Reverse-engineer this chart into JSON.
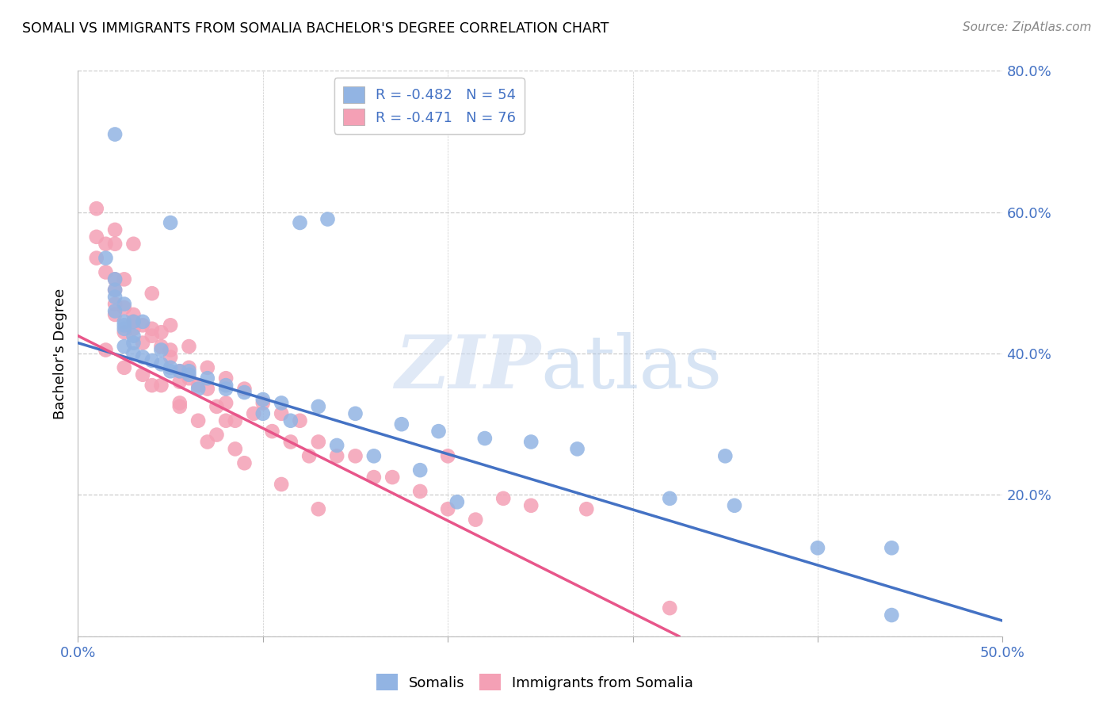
{
  "title": "SOMALI VS IMMIGRANTS FROM SOMALIA BACHELOR'S DEGREE CORRELATION CHART",
  "source": "Source: ZipAtlas.com",
  "ylabel": "Bachelor's Degree",
  "xlim": [
    0.0,
    0.5
  ],
  "ylim": [
    0.0,
    0.8
  ],
  "somalis_color": "#92b4e3",
  "immigrants_color": "#f4a0b5",
  "somalis_legend_label": "R = -0.482   N = 54",
  "immigrants_legend_label": "R = -0.471   N = 76",
  "legend_label1": "Somalis",
  "legend_label2": "Immigrants from Somalia",
  "axis_color": "#4472c4",
  "grid_color": "#cccccc",
  "blue_line_x": [
    0.0,
    0.5
  ],
  "blue_line_y": [
    0.415,
    0.022
  ],
  "pink_line_x": [
    0.0,
    0.325
  ],
  "pink_line_y": [
    0.425,
    0.0
  ],
  "somalis_x": [
    0.02,
    0.05,
    0.12,
    0.135,
    0.015,
    0.02,
    0.02,
    0.02,
    0.025,
    0.025,
    0.03,
    0.03,
    0.025,
    0.03,
    0.035,
    0.04,
    0.045,
    0.05,
    0.055,
    0.06,
    0.07,
    0.08,
    0.09,
    0.1,
    0.11,
    0.13,
    0.15,
    0.175,
    0.195,
    0.22,
    0.245,
    0.27,
    0.32,
    0.355,
    0.4,
    0.44,
    0.025,
    0.035,
    0.045,
    0.06,
    0.08,
    0.1,
    0.115,
    0.14,
    0.16,
    0.185,
    0.205,
    0.03,
    0.05,
    0.065,
    0.35,
    0.44,
    0.02,
    0.025
  ],
  "somalis_y": [
    0.71,
    0.585,
    0.585,
    0.59,
    0.535,
    0.505,
    0.49,
    0.46,
    0.445,
    0.435,
    0.425,
    0.415,
    0.41,
    0.4,
    0.395,
    0.39,
    0.385,
    0.38,
    0.375,
    0.37,
    0.365,
    0.355,
    0.345,
    0.335,
    0.33,
    0.325,
    0.315,
    0.3,
    0.29,
    0.28,
    0.275,
    0.265,
    0.195,
    0.185,
    0.125,
    0.03,
    0.47,
    0.445,
    0.405,
    0.375,
    0.35,
    0.315,
    0.305,
    0.27,
    0.255,
    0.235,
    0.19,
    0.445,
    0.375,
    0.35,
    0.255,
    0.125,
    0.48,
    0.44
  ],
  "immigrants_x": [
    0.01,
    0.01,
    0.015,
    0.015,
    0.02,
    0.02,
    0.02,
    0.02,
    0.02,
    0.025,
    0.025,
    0.03,
    0.03,
    0.03,
    0.035,
    0.035,
    0.04,
    0.04,
    0.045,
    0.045,
    0.05,
    0.05,
    0.055,
    0.055,
    0.06,
    0.06,
    0.065,
    0.07,
    0.07,
    0.075,
    0.08,
    0.08,
    0.085,
    0.09,
    0.095,
    0.1,
    0.105,
    0.11,
    0.115,
    0.12,
    0.125,
    0.13,
    0.14,
    0.15,
    0.16,
    0.17,
    0.185,
    0.2,
    0.215,
    0.23,
    0.245,
    0.275,
    0.015,
    0.025,
    0.035,
    0.045,
    0.055,
    0.065,
    0.075,
    0.085,
    0.01,
    0.02,
    0.03,
    0.04,
    0.05,
    0.06,
    0.08,
    0.2,
    0.32,
    0.025,
    0.04,
    0.055,
    0.07,
    0.09,
    0.11,
    0.13
  ],
  "immigrants_y": [
    0.565,
    0.535,
    0.555,
    0.515,
    0.555,
    0.505,
    0.49,
    0.47,
    0.455,
    0.505,
    0.465,
    0.455,
    0.445,
    0.435,
    0.44,
    0.415,
    0.485,
    0.435,
    0.43,
    0.41,
    0.44,
    0.395,
    0.375,
    0.36,
    0.41,
    0.38,
    0.355,
    0.38,
    0.35,
    0.325,
    0.365,
    0.33,
    0.305,
    0.35,
    0.315,
    0.33,
    0.29,
    0.315,
    0.275,
    0.305,
    0.255,
    0.275,
    0.255,
    0.255,
    0.225,
    0.225,
    0.205,
    0.18,
    0.165,
    0.195,
    0.185,
    0.18,
    0.405,
    0.38,
    0.37,
    0.355,
    0.325,
    0.305,
    0.285,
    0.265,
    0.605,
    0.575,
    0.555,
    0.425,
    0.405,
    0.365,
    0.305,
    0.255,
    0.04,
    0.43,
    0.355,
    0.33,
    0.275,
    0.245,
    0.215,
    0.18
  ]
}
